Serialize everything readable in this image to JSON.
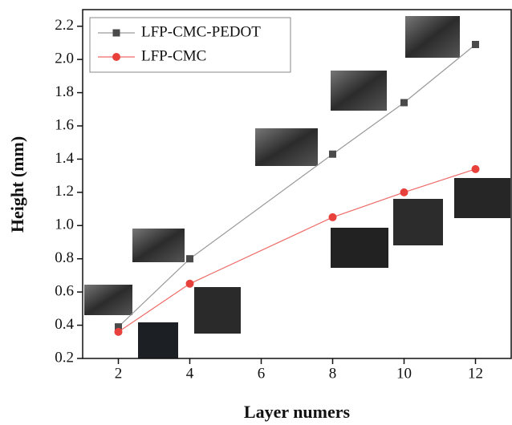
{
  "chart_data": {
    "type": "line",
    "x_label": "Layer numers",
    "y_label": "Height (mm)",
    "x": [
      2,
      4,
      8,
      10,
      12
    ],
    "series": [
      {
        "name": "LFP-CMC-PEDOT",
        "color": "#4a4a4a",
        "line_color": "#9a9a9a",
        "marker": "square",
        "values": [
          0.39,
          0.8,
          1.43,
          1.74,
          2.09
        ]
      },
      {
        "name": "LFP-CMC",
        "color": "#e8403a",
        "line_color": "#ee6a66",
        "marker": "circle",
        "values": [
          0.36,
          0.65,
          1.05,
          1.2,
          1.34
        ]
      }
    ],
    "xlim": [
      1,
      13
    ],
    "xticks": [
      2,
      4,
      6,
      8,
      10,
      12
    ],
    "ylim": [
      0.2,
      2.3
    ],
    "yticks": [
      0.2,
      0.4,
      0.6,
      0.8,
      {
        "value": 1.0,
        "label": "1.0"
      },
      1.2,
      1.4,
      1.6,
      1.8,
      {
        "value": 2.0,
        "label": "2.0"
      },
      2.2
    ],
    "legend": "top-left"
  }
}
